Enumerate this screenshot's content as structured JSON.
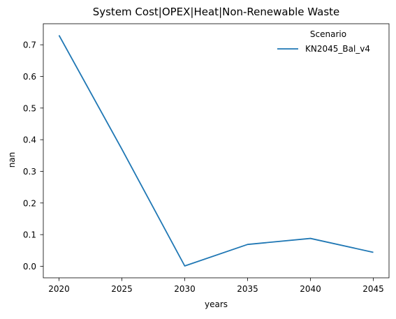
{
  "chart_data": {
    "type": "line",
    "title": "System Cost|OPEX|Heat|Non-Renewable Waste",
    "xlabel": "years",
    "ylabel": "nan",
    "x": [
      2020,
      2025,
      2030,
      2035,
      2040,
      2045
    ],
    "xticks": [
      "2020",
      "2025",
      "2030",
      "2035",
      "2040",
      "2045"
    ],
    "yticks": [
      "0.0",
      "0.1",
      "0.2",
      "0.3",
      "0.4",
      "0.5",
      "0.6",
      "0.7"
    ],
    "xlim": [
      2018.75,
      2046.25
    ],
    "ylim": [
      -0.0365,
      0.7665
    ],
    "grid": false,
    "legend": {
      "title": "Scenario",
      "placement": "top-right"
    },
    "series": [
      {
        "name": "KN2045_Bal_v4",
        "color": "#1f77b4",
        "values": [
          0.73,
          0.37,
          0.001,
          0.069,
          0.088,
          0.044
        ]
      }
    ]
  }
}
